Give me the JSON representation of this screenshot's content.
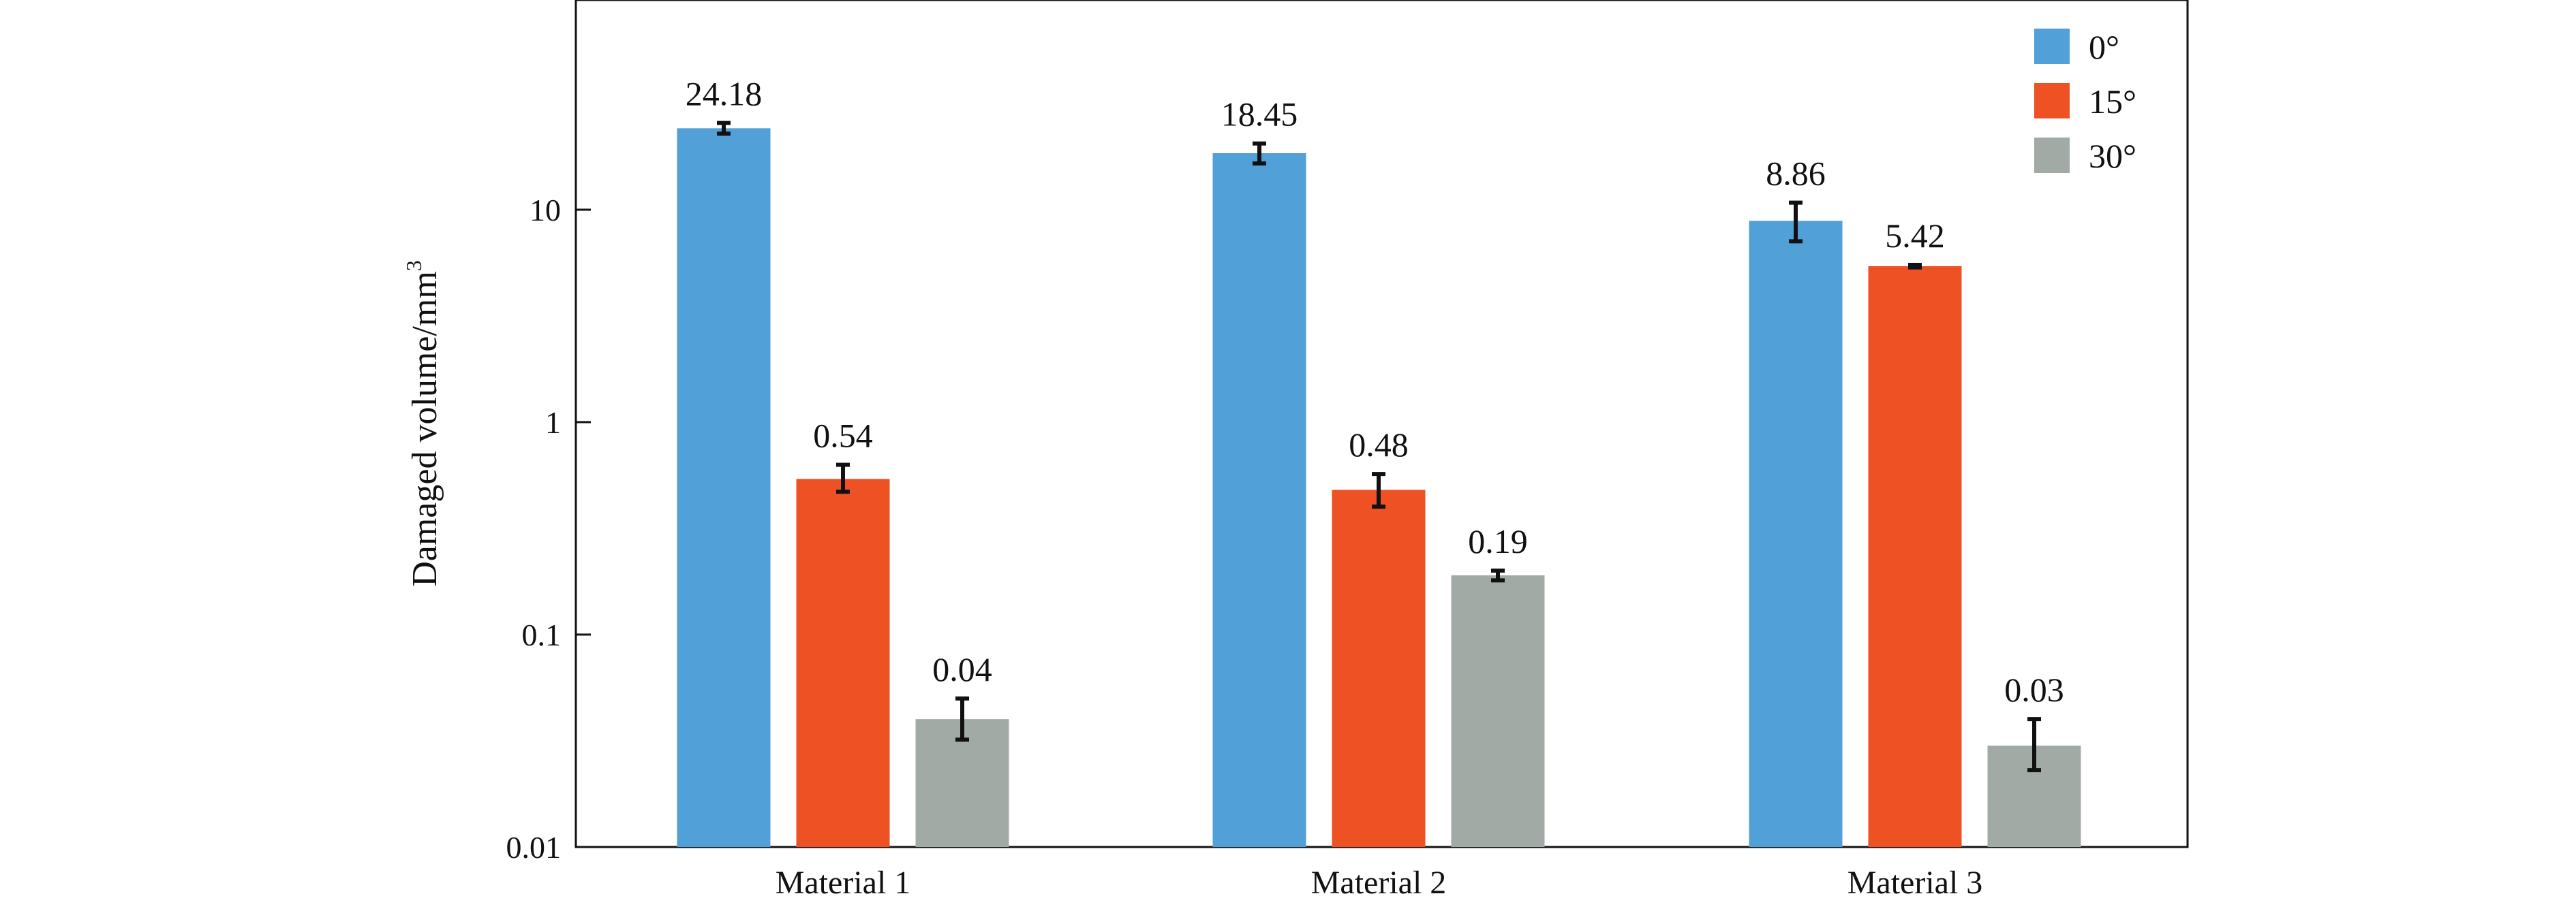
{
  "chart_data": {
    "type": "bar",
    "title": "",
    "xlabel": "",
    "ylabel": "Damaged volume/mm",
    "ylabel_superscript": "3",
    "y_scale": "log",
    "ylim": [
      0.01,
      100
    ],
    "y_ticks": [
      0.01,
      0.1,
      1,
      10
    ],
    "y_tick_labels": [
      "0.01",
      "0.1",
      "1",
      "10"
    ],
    "categories": [
      "Material 1",
      "Material 2",
      "Material 3"
    ],
    "legend_position": "top-right",
    "grid": false,
    "series": [
      {
        "name": "0°",
        "color": "#52A0D8",
        "values": [
          24.18,
          18.45,
          8.86
        ],
        "labels": [
          "24.18",
          "18.45",
          "8.86"
        ],
        "err_low": [
          22.8,
          16.5,
          7.1
        ],
        "err_high": [
          25.6,
          20.5,
          10.8
        ]
      },
      {
        "name": "15°",
        "color": "#EE5124",
        "values": [
          0.54,
          0.48,
          5.42
        ],
        "labels": [
          "0.54",
          "0.48",
          "5.42"
        ],
        "err_low": [
          0.47,
          0.4,
          5.35
        ],
        "err_high": [
          0.63,
          0.57,
          5.5
        ]
      },
      {
        "name": "30°",
        "color": "#A2AAA6",
        "values": [
          0.04,
          0.19,
          0.03
        ],
        "labels": [
          "0.04",
          "0.19",
          "0.03"
        ],
        "err_low": [
          0.032,
          0.18,
          0.023
        ],
        "err_high": [
          0.05,
          0.2,
          0.04
        ]
      }
    ]
  }
}
